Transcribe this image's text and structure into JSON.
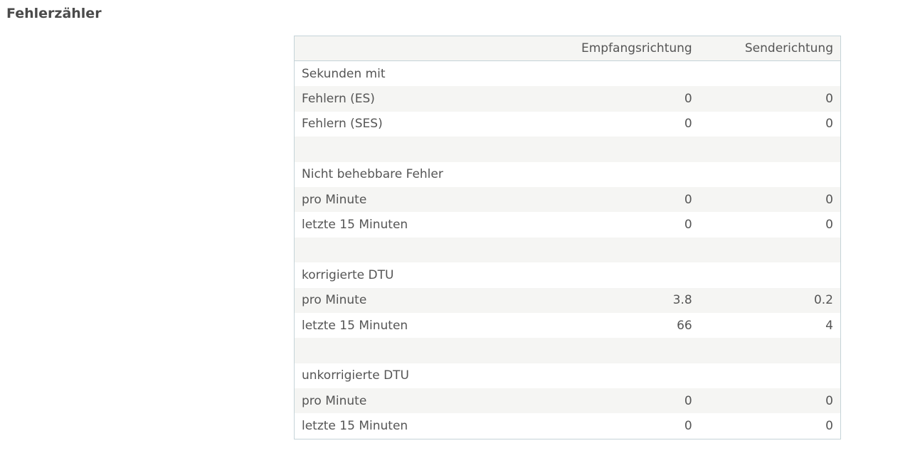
{
  "section": {
    "title": "Fehlerzähler"
  },
  "table": {
    "headers": {
      "label": "",
      "rx": "Empfangsrichtung",
      "tx": "Senderichtung"
    },
    "rows": [
      {
        "type": "group",
        "label": "Sekunden mit",
        "rx": "",
        "tx": ""
      },
      {
        "type": "data",
        "label": "Fehlern (ES)",
        "rx": "0",
        "tx": "0"
      },
      {
        "type": "data",
        "label": "Fehlern (SES)",
        "rx": "0",
        "tx": "0"
      },
      {
        "type": "spacer",
        "label": "",
        "rx": "",
        "tx": ""
      },
      {
        "type": "group",
        "label": "Nicht behebbare Fehler",
        "rx": "",
        "tx": ""
      },
      {
        "type": "data",
        "label": "pro Minute",
        "rx": "0",
        "tx": "0"
      },
      {
        "type": "data",
        "label": "letzte 15 Minuten",
        "rx": "0",
        "tx": "0"
      },
      {
        "type": "spacer",
        "label": "",
        "rx": "",
        "tx": ""
      },
      {
        "type": "group",
        "label": "korrigierte DTU",
        "rx": "",
        "tx": ""
      },
      {
        "type": "data",
        "label": "pro Minute",
        "rx": "3.8",
        "tx": "0.2"
      },
      {
        "type": "data",
        "label": "letzte 15 Minuten",
        "rx": "66",
        "tx": "4"
      },
      {
        "type": "spacer",
        "label": "",
        "rx": "",
        "tx": ""
      },
      {
        "type": "group",
        "label": "unkorrigierte DTU",
        "rx": "",
        "tx": ""
      },
      {
        "type": "data",
        "label": "pro Minute",
        "rx": "0",
        "tx": "0"
      },
      {
        "type": "data",
        "label": "letzte 15 Minuten",
        "rx": "0",
        "tx": "0"
      }
    ]
  }
}
